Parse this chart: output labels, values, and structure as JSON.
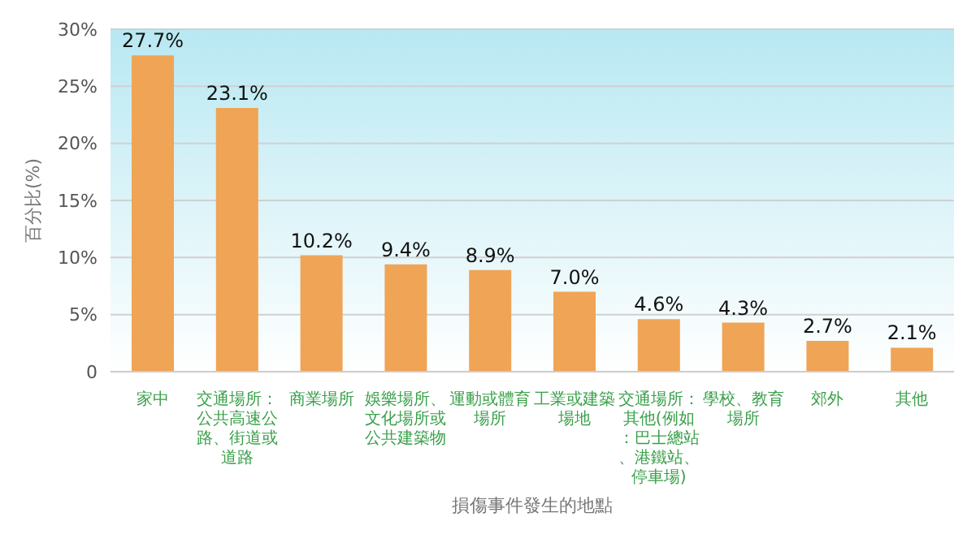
{
  "chart_data": {
    "type": "bar",
    "xlabel": "損傷事件發生的地點",
    "ylabel": "百分比(%)",
    "categories": [
      "家中",
      "交通場所：公共高速公路、街道或道路",
      "商業場所",
      "娛樂場所、文化場所或公共建築物",
      "運動或體育場所",
      "工業或建築場地",
      "交通場所：其他(例如：巴士總站、港鐵站、停車場)",
      "學校、教育場所",
      "郊外",
      "其他"
    ],
    "values": [
      27.7,
      23.1,
      10.2,
      9.4,
      8.9,
      7.0,
      4.6,
      4.3,
      2.7,
      2.1
    ],
    "value_labels": [
      "27.7%",
      "23.1%",
      "10.2%",
      "9.4%",
      "8.9%",
      "7.0%",
      "4.6%",
      "4.3%",
      "2.7%",
      "2.1%"
    ],
    "color": "#f0a455",
    "ylim": [
      0,
      30
    ],
    "yticks": [
      {
        "value": 0,
        "label": "0"
      },
      {
        "value": 5,
        "label": "5%"
      },
      {
        "value": 10,
        "label": "10%"
      },
      {
        "value": 15,
        "label": "15%"
      },
      {
        "value": 20,
        "label": "20%"
      },
      {
        "value": 25,
        "label": "25%"
      },
      {
        "value": 30,
        "label": "30%"
      }
    ],
    "grid": "y"
  }
}
